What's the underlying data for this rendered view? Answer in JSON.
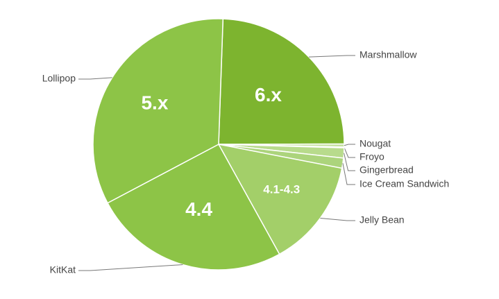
{
  "chart_data": {
    "type": "pie",
    "categories": [
      "Marshmallow",
      "Nougat",
      "Froyo",
      "Gingerbread",
      "Ice Cream Sandwich",
      "Jelly Bean",
      "KitKat",
      "Lollipop"
    ],
    "values": [
      24.4,
      0.4,
      0.1,
      1.3,
      1.3,
      13.9,
      25.3,
      33.3
    ],
    "inner_labels": [
      "6.x",
      null,
      null,
      null,
      null,
      "4.1-4.3",
      "4.4",
      "5.x"
    ],
    "colors": [
      "#7db42f",
      "#c5e1a0",
      "#d4e9b8",
      "#b8db8c",
      "#acd47c",
      "#a3cf69",
      "#8dc447",
      "#8dc447"
    ]
  }
}
